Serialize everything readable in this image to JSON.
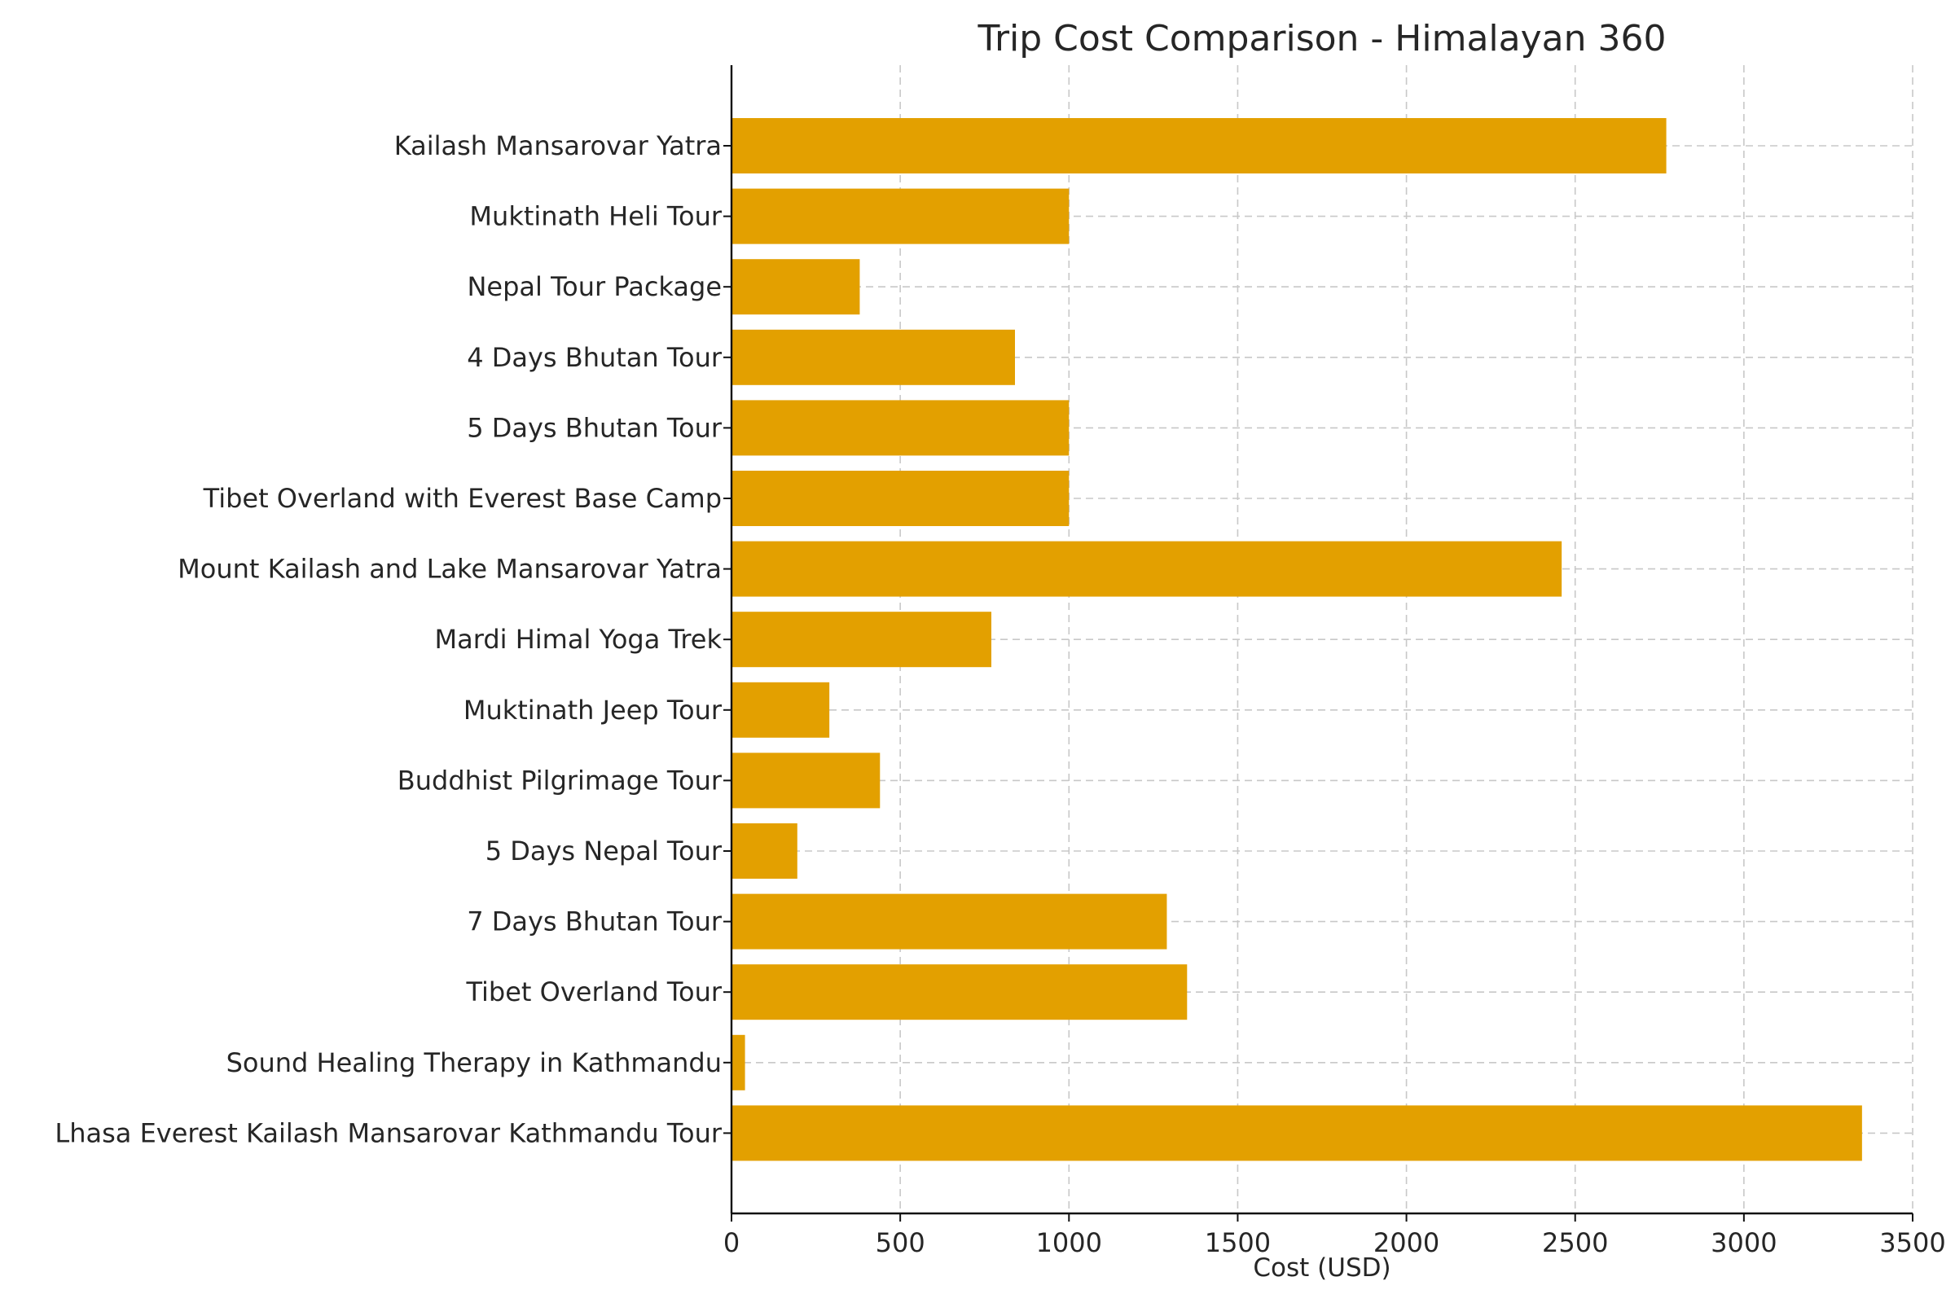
{
  "chart_data": {
    "type": "bar",
    "orientation": "horizontal",
    "title": "Trip Cost Comparison - Himalayan 360",
    "xlabel": "Cost (USD)",
    "ylabel": "",
    "xlim": [
      0,
      3500
    ],
    "xticks": [
      0,
      500,
      1000,
      1500,
      2000,
      2500,
      3000,
      3500
    ],
    "grid": true,
    "bar_color": "#E3A000",
    "categories": [
      "Kailash Mansarovar Yatra",
      "Muktinath Heli Tour",
      "Nepal Tour Package",
      "4 Days Bhutan Tour",
      "5 Days Bhutan Tour",
      "Tibet Overland with Everest Base Camp",
      "Mount Kailash and Lake Mansarovar Yatra",
      "Mardi Himal Yoga Trek",
      "Muktinath Jeep Tour",
      "Buddhist Pilgrimage Tour",
      "5 Days Nepal Tour",
      "7 Days Bhutan Tour",
      "Tibet Overland Tour",
      "Sound Healing Therapy in Kathmandu",
      "Lhasa Everest Kailash Mansarovar Kathmandu Tour"
    ],
    "values": [
      2770,
      1000,
      380,
      840,
      1000,
      1000,
      2460,
      770,
      290,
      440,
      195,
      1290,
      1350,
      40,
      3350
    ]
  }
}
